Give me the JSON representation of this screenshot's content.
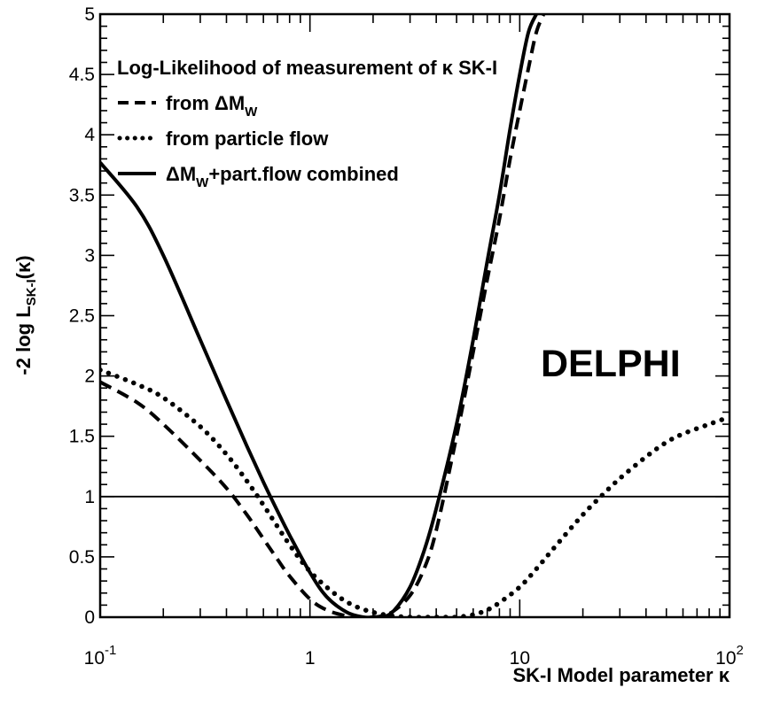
{
  "chart_data": {
    "type": "line",
    "title": "",
    "xlabel": "SK-I Model parameter κ",
    "ylabel": "-2 log L_SK-I(κ)",
    "xscale": "log",
    "xlim": [
      0.1,
      100
    ],
    "ylim": [
      0,
      5
    ],
    "grid": false,
    "x_ticks": [
      {
        "value": 0.1,
        "base": "10",
        "exp": "-1"
      },
      {
        "value": 1,
        "base": "1",
        "exp": ""
      },
      {
        "value": 10,
        "base": "10",
        "exp": ""
      },
      {
        "value": 100,
        "base": "10",
        "exp": "2"
      }
    ],
    "y_ticks": [
      {
        "value": 0,
        "label": "0"
      },
      {
        "value": 0.5,
        "label": "0.5"
      },
      {
        "value": 1,
        "label": "1"
      },
      {
        "value": 1.5,
        "label": "1.5"
      },
      {
        "value": 2,
        "label": "2"
      },
      {
        "value": 2.5,
        "label": "2.5"
      },
      {
        "value": 3,
        "label": "3"
      },
      {
        "value": 3.5,
        "label": "3.5"
      },
      {
        "value": 4,
        "label": "4"
      },
      {
        "value": 4.5,
        "label": "4.5"
      },
      {
        "value": 5,
        "label": "5"
      }
    ],
    "legend": {
      "position": "top-left",
      "title": "Log-Likelihood of measurement of κ SK-I",
      "entries": [
        {
          "series": 0,
          "text": "from ΔM",
          "sub": "W",
          "rest": ""
        },
        {
          "series": 1,
          "text": "from particle flow",
          "sub": "",
          "rest": ""
        },
        {
          "series": 2,
          "text": "ΔM",
          "sub": "W",
          "rest": "+part.flow combined"
        }
      ]
    },
    "annotations": [
      {
        "text": "DELPHI"
      }
    ],
    "reference_lines": [
      {
        "y": 1
      }
    ],
    "series": [
      {
        "style": "dashed",
        "x": [
          0.1,
          0.15,
          0.2,
          0.3,
          0.4,
          0.5,
          0.6,
          0.7,
          0.8,
          1.0,
          1.2,
          1.5,
          1.8,
          2.0,
          2.2,
          2.5,
          3.0,
          3.5,
          4.0,
          5.0,
          6.0,
          7.0,
          8.0,
          9.0,
          10.0,
          11.0,
          12.0,
          13.0
        ],
        "y": [
          1.95,
          1.78,
          1.6,
          1.3,
          1.07,
          0.85,
          0.65,
          0.48,
          0.34,
          0.15,
          0.06,
          0.01,
          0.0,
          0.0,
          0.01,
          0.05,
          0.18,
          0.4,
          0.72,
          1.5,
          2.2,
          2.8,
          3.3,
          3.8,
          4.2,
          4.55,
          4.85,
          5.0
        ]
      },
      {
        "style": "dotted",
        "x": [
          0.1,
          0.15,
          0.2,
          0.3,
          0.4,
          0.5,
          0.6,
          0.8,
          1.0,
          1.3,
          1.6,
          2.0,
          2.5,
          3.0,
          3.5,
          4.0,
          4.5,
          5.0,
          6.0,
          7.0,
          8.0,
          10.0,
          12.0,
          15.0,
          20.0,
          25.0,
          30.0,
          40.0,
          50.0,
          60.0,
          80.0,
          100.0
        ],
        "y": [
          2.05,
          1.93,
          1.82,
          1.58,
          1.35,
          1.13,
          0.93,
          0.6,
          0.38,
          0.2,
          0.1,
          0.04,
          0.01,
          0.0,
          0.0,
          0.0,
          0.0,
          0.0,
          0.02,
          0.06,
          0.12,
          0.25,
          0.4,
          0.6,
          0.85,
          1.02,
          1.15,
          1.33,
          1.45,
          1.52,
          1.6,
          1.66
        ]
      },
      {
        "style": "solid",
        "x": [
          0.1,
          0.15,
          0.2,
          0.3,
          0.4,
          0.5,
          0.6,
          0.7,
          0.8,
          1.0,
          1.2,
          1.5,
          1.8,
          2.0,
          2.2,
          2.5,
          3.0,
          3.5,
          4.0,
          5.0,
          6.0,
          7.0,
          8.0,
          9.0,
          10.0,
          11.0,
          12.0
        ],
        "y": [
          3.77,
          3.4,
          3.0,
          2.3,
          1.8,
          1.42,
          1.12,
          0.88,
          0.68,
          0.37,
          0.17,
          0.04,
          0.0,
          0.0,
          0.0,
          0.05,
          0.25,
          0.55,
          0.9,
          1.6,
          2.3,
          2.95,
          3.5,
          4.05,
          4.5,
          4.85,
          5.0
        ]
      }
    ]
  }
}
